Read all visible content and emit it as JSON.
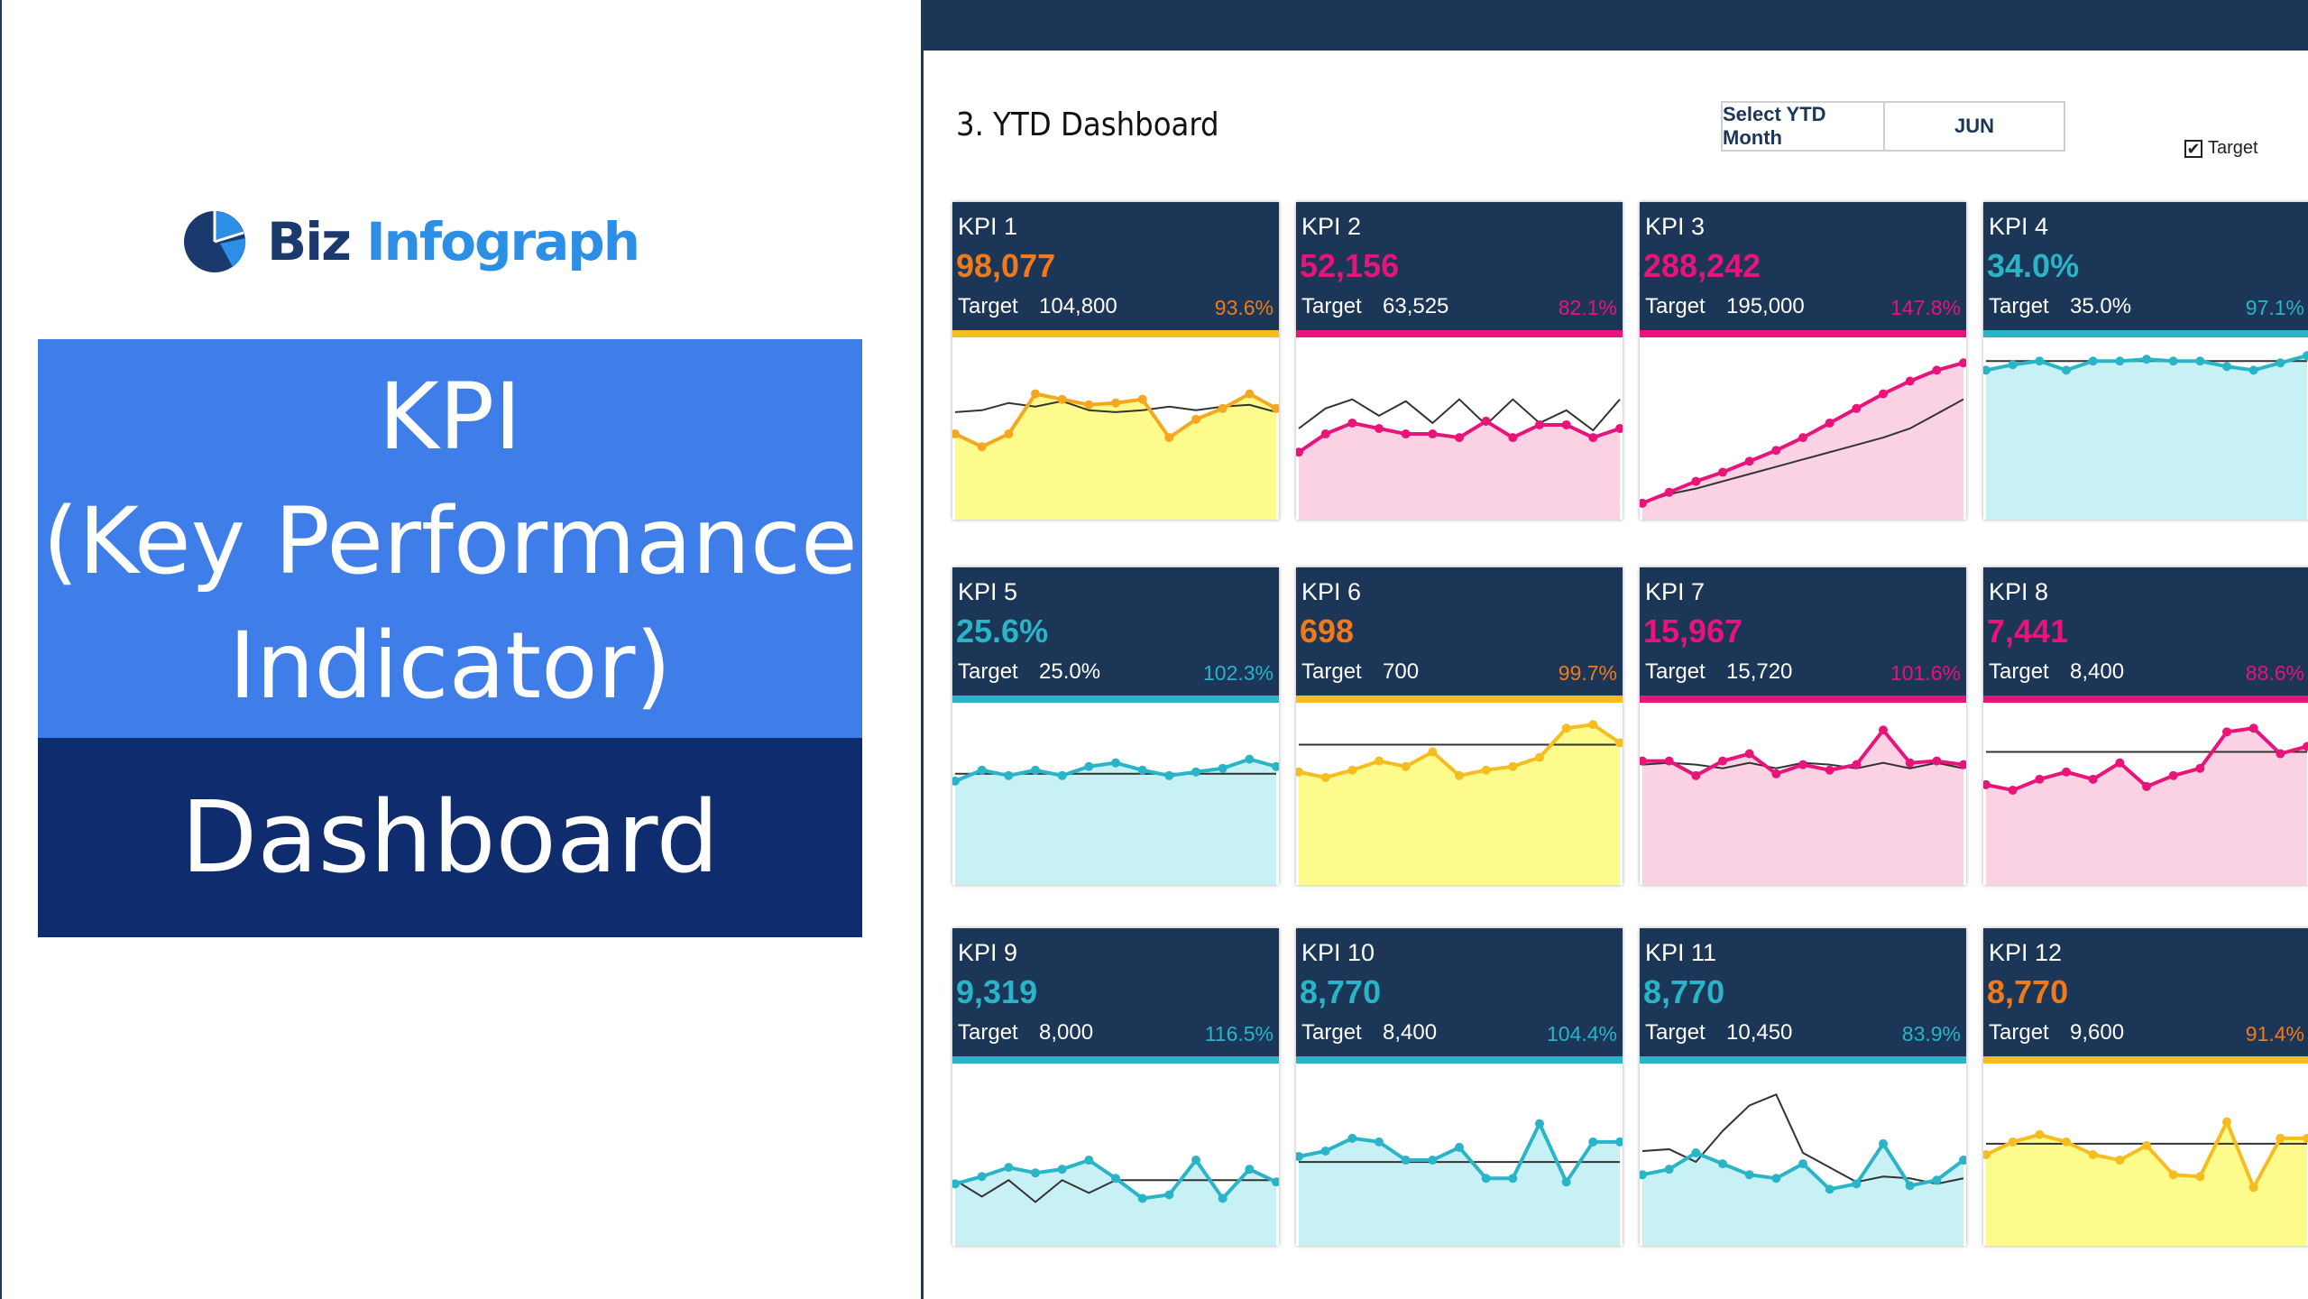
{
  "brand": {
    "name_part1": "Biz",
    "name_part2": "Infograph"
  },
  "title": {
    "line1": "KPI",
    "line2": "(Key Performance",
    "line3": "Indicator)",
    "subtitle": "Dashboard"
  },
  "dashboard": {
    "title": "3. YTD Dashboard",
    "month_selector_label": "Select YTD Month",
    "month_value": "JUN",
    "target_toggle_label": "Target",
    "target_checked": true
  },
  "colors": {
    "orange": "#f07a1a",
    "pink": "#e8147a",
    "cyan": "#2ab4c8",
    "yellow": "#f5bd1f",
    "header": "#1b3657",
    "yellow_fill": "#fdfb8c",
    "pink_fill": "#fbd2e4",
    "cyan_fill": "#c8f1f6"
  },
  "kpis": [
    {
      "name": "KPI 1",
      "value": "98,077",
      "target_label": "Target",
      "target": "104,800",
      "pct": "93.6%",
      "value_color": "#f07a1a",
      "accent": "#f5bd1f",
      "line_color": "#f5a81f",
      "fill": "#fdfb8c",
      "actual": [
        0.47,
        0.4,
        0.47,
        0.69,
        0.66,
        0.63,
        0.64,
        0.66,
        0.45,
        0.55,
        0.61,
        0.69,
        0.61
      ],
      "target_line": [
        0.59,
        0.6,
        0.64,
        0.62,
        0.65,
        0.6,
        0.59,
        0.6,
        0.62,
        0.6,
        0.62,
        0.63,
        0.59
      ]
    },
    {
      "name": "KPI 2",
      "value": "52,156",
      "target_label": "Target",
      "target": "63,525",
      "pct": "82.1%",
      "value_color": "#e8147a",
      "accent": "#e8147a",
      "line_color": "#e8147a",
      "fill": "#fbd2e4",
      "actual": [
        0.37,
        0.47,
        0.53,
        0.5,
        0.47,
        0.47,
        0.45,
        0.54,
        0.45,
        0.52,
        0.52,
        0.45,
        0.5
      ],
      "target_line": [
        0.5,
        0.61,
        0.66,
        0.57,
        0.65,
        0.53,
        0.66,
        0.52,
        0.66,
        0.53,
        0.6,
        0.49,
        0.66
      ]
    },
    {
      "name": "KPI 3",
      "value": "288,242",
      "target_label": "Target",
      "target": "195,000",
      "pct": "147.8%",
      "value_color": "#e8147a",
      "accent": "#e8147a",
      "line_color": "#e8147a",
      "fill": "#fbd2e4",
      "actual": [
        0.09,
        0.15,
        0.21,
        0.26,
        0.32,
        0.38,
        0.45,
        0.53,
        0.61,
        0.69,
        0.76,
        0.82,
        0.86
      ],
      "target_line": [
        0.09,
        0.14,
        0.17,
        0.21,
        0.25,
        0.29,
        0.33,
        0.37,
        0.41,
        0.45,
        0.5,
        0.58,
        0.66
      ]
    },
    {
      "name": "KPI 4",
      "value": "34.0%",
      "target_label": "Target",
      "target": "35.0%",
      "pct": "97.1%",
      "value_color": "#2ab4c8",
      "accent": "#2ab4c8",
      "line_color": "#2ab4c8",
      "fill": "#c8f1f6",
      "actual": [
        0.82,
        0.85,
        0.87,
        0.82,
        0.87,
        0.87,
        0.88,
        0.87,
        0.87,
        0.84,
        0.82,
        0.86,
        0.9
      ],
      "target_line": [
        0.87,
        0.87,
        0.87,
        0.87,
        0.87,
        0.87,
        0.87,
        0.87,
        0.87,
        0.87,
        0.87,
        0.87,
        0.87
      ]
    },
    {
      "name": "KPI 5",
      "value": "25.6%",
      "target_label": "Target",
      "target": "25.0%",
      "pct": "102.3%",
      "value_color": "#2ab4c8",
      "accent": "#2ab4c8",
      "line_color": "#2ab4c8",
      "fill": "#c8f1f6",
      "actual": [
        0.57,
        0.63,
        0.6,
        0.63,
        0.6,
        0.65,
        0.67,
        0.63,
        0.6,
        0.62,
        0.64,
        0.69,
        0.65
      ],
      "target_line": [
        0.61,
        0.61,
        0.61,
        0.61,
        0.61,
        0.61,
        0.61,
        0.61,
        0.61,
        0.61,
        0.61,
        0.61,
        0.61
      ]
    },
    {
      "name": "KPI 6",
      "value": "698",
      "target_label": "Target",
      "target": "700",
      "pct": "99.7%",
      "value_color": "#f07a1a",
      "accent": "#f5bd1f",
      "line_color": "#f5bd1f",
      "fill": "#fdfb8c",
      "actual": [
        0.62,
        0.59,
        0.63,
        0.68,
        0.65,
        0.73,
        0.6,
        0.63,
        0.65,
        0.7,
        0.86,
        0.88,
        0.78
      ],
      "target_line": [
        0.77,
        0.77,
        0.77,
        0.77,
        0.77,
        0.77,
        0.77,
        0.77,
        0.77,
        0.77,
        0.77,
        0.77,
        0.77
      ]
    },
    {
      "name": "KPI 7",
      "value": "15,967",
      "target_label": "Target",
      "target": "15,720",
      "pct": "101.6%",
      "value_color": "#e8147a",
      "accent": "#e8147a",
      "line_color": "#e8147a",
      "fill": "#fbd2e4",
      "actual": [
        0.68,
        0.68,
        0.6,
        0.68,
        0.72,
        0.61,
        0.66,
        0.63,
        0.66,
        0.85,
        0.67,
        0.68,
        0.66
      ],
      "target_line": [
        0.66,
        0.67,
        0.66,
        0.64,
        0.67,
        0.64,
        0.67,
        0.66,
        0.64,
        0.67,
        0.64,
        0.67,
        0.64
      ]
    },
    {
      "name": "KPI 8",
      "value": "7,441",
      "target_label": "Target",
      "target": "8,400",
      "pct": "88.6%",
      "value_color": "#e8147a",
      "accent": "#e8147a",
      "line_color": "#e8147a",
      "fill": "#fbd2e4",
      "actual": [
        0.55,
        0.52,
        0.58,
        0.62,
        0.58,
        0.67,
        0.54,
        0.6,
        0.64,
        0.84,
        0.86,
        0.72,
        0.76
      ],
      "target_line": [
        0.73,
        0.73,
        0.73,
        0.73,
        0.73,
        0.73,
        0.73,
        0.73,
        0.73,
        0.73,
        0.73,
        0.73,
        0.73
      ]
    },
    {
      "name": "KPI 9",
      "value": "9,319",
      "target_label": "Target",
      "target": "8,000",
      "pct": "116.5%",
      "value_color": "#2ab4c8",
      "accent": "#2ab4c8",
      "line_color": "#2ab4c8",
      "fill": "#c8f1f6",
      "actual": [
        0.34,
        0.38,
        0.43,
        0.4,
        0.42,
        0.47,
        0.37,
        0.26,
        0.28,
        0.47,
        0.26,
        0.42,
        0.35
      ],
      "target_line": [
        0.36,
        0.27,
        0.36,
        0.24,
        0.36,
        0.29,
        0.36,
        0.36,
        0.36,
        0.36,
        0.36,
        0.36,
        0.36
      ]
    },
    {
      "name": "KPI 10",
      "value": "8,770",
      "target_label": "Target",
      "target": "8,400",
      "pct": "104.4%",
      "value_color": "#2ab4c8",
      "accent": "#2ab4c8",
      "line_color": "#2ab4c8",
      "fill": "#c8f1f6",
      "actual": [
        0.49,
        0.52,
        0.59,
        0.57,
        0.47,
        0.47,
        0.54,
        0.37,
        0.37,
        0.67,
        0.35,
        0.57,
        0.57
      ],
      "target_line": [
        0.46,
        0.46,
        0.46,
        0.46,
        0.46,
        0.46,
        0.46,
        0.46,
        0.46,
        0.46,
        0.46,
        0.46,
        0.46
      ]
    },
    {
      "name": "KPI 11",
      "value": "8,770",
      "target_label": "Target",
      "target": "10,450",
      "pct": "83.9%",
      "value_color": "#2ab4c8",
      "accent": "#2ab4c8",
      "line_color": "#2ab4c8",
      "fill": "#c8f1f6",
      "actual": [
        0.39,
        0.42,
        0.51,
        0.45,
        0.39,
        0.37,
        0.45,
        0.31,
        0.34,
        0.56,
        0.33,
        0.36,
        0.47
      ],
      "target_line": [
        0.52,
        0.53,
        0.46,
        0.63,
        0.77,
        0.83,
        0.51,
        0.43,
        0.35,
        0.38,
        0.37,
        0.34,
        0.37
      ]
    },
    {
      "name": "KPI 12",
      "value": "8,770",
      "target_label": "Target",
      "target": "9,600",
      "pct": "91.4%",
      "value_color": "#f07a1a",
      "accent": "#f5bd1f",
      "line_color": "#f5bd1f",
      "fill": "#fdfb8c",
      "actual": [
        0.5,
        0.57,
        0.61,
        0.57,
        0.5,
        0.47,
        0.55,
        0.39,
        0.38,
        0.68,
        0.32,
        0.59,
        0.59
      ],
      "target_line": [
        0.56,
        0.56,
        0.56,
        0.56,
        0.56,
        0.56,
        0.56,
        0.56,
        0.56,
        0.56,
        0.56,
        0.56,
        0.56
      ]
    }
  ]
}
